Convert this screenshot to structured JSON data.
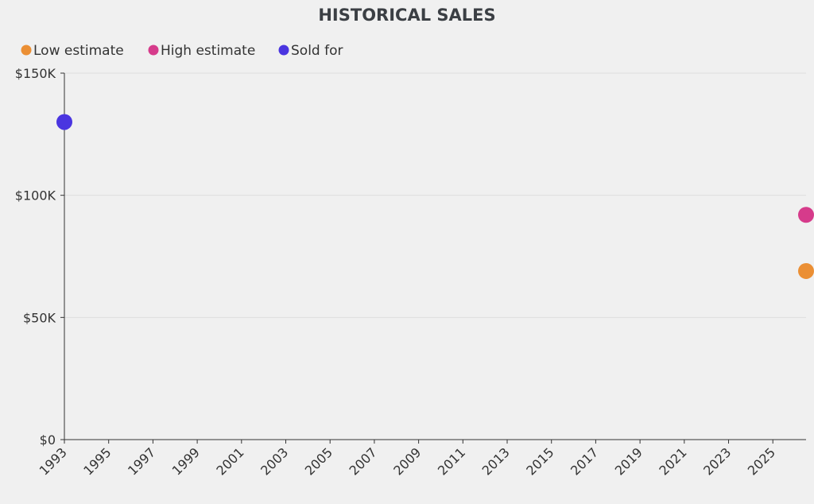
{
  "chart_data": {
    "type": "scatter",
    "title": "HISTORICAL SALES",
    "xlabel": "",
    "ylabel": "",
    "x_ticks": [
      "1993",
      "1995",
      "1997",
      "1999",
      "2001",
      "2003",
      "2005",
      "2007",
      "2009",
      "2011",
      "2013",
      "2015",
      "2017",
      "2019",
      "2021",
      "2023",
      "2025"
    ],
    "xlim": [
      1993,
      2026.5
    ],
    "y_ticks": [
      {
        "value": 0,
        "label": "$0"
      },
      {
        "value": 50000,
        "label": "$50K"
      },
      {
        "value": 100000,
        "label": "$100K"
      },
      {
        "value": 150000,
        "label": "$150K"
      }
    ],
    "ylim": [
      0,
      150000
    ],
    "grid": true,
    "legend_position": "top-left",
    "series": [
      {
        "name": "Low estimate",
        "color": "#eb8f34",
        "points": [
          {
            "x": 2026.5,
            "y": 69000
          }
        ]
      },
      {
        "name": "High estimate",
        "color": "#d63b8b",
        "points": [
          {
            "x": 2026.5,
            "y": 92000
          }
        ]
      },
      {
        "name": "Sold for",
        "color": "#4a35e0",
        "points": [
          {
            "x": 1993,
            "y": 130000
          }
        ]
      }
    ]
  }
}
